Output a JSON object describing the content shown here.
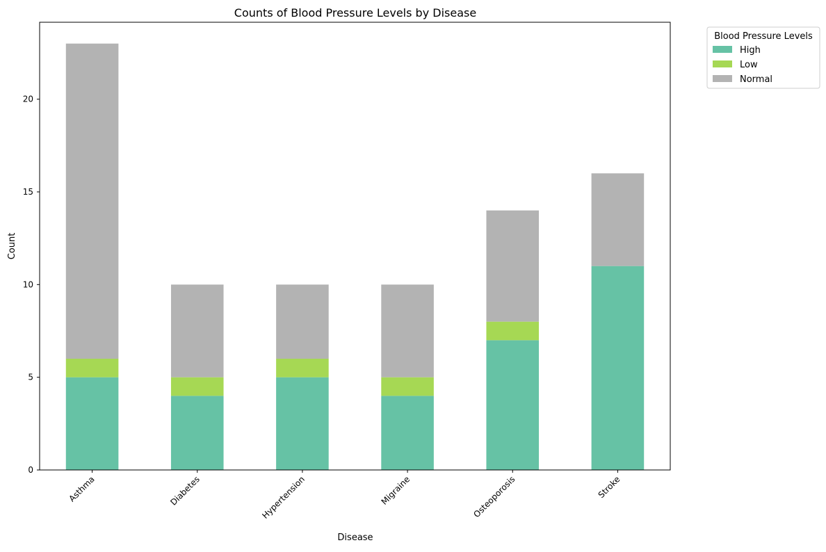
{
  "chart_data": {
    "type": "bar",
    "stacked": true,
    "title": "Counts of Blood Pressure Levels by Disease",
    "xlabel": "Disease",
    "ylabel": "Count",
    "categories": [
      "Asthma",
      "Diabetes",
      "Hypertension",
      "Migraine",
      "Osteoporosis",
      "Stroke"
    ],
    "series": [
      {
        "name": "High",
        "values": [
          5,
          4,
          5,
          4,
          7,
          11
        ],
        "color": "#66c2a5"
      },
      {
        "name": "Low",
        "values": [
          1,
          1,
          1,
          1,
          1,
          0
        ],
        "color": "#a6d854"
      },
      {
        "name": "Normal",
        "values": [
          17,
          5,
          4,
          5,
          6,
          5
        ],
        "color": "#b3b3b3"
      }
    ],
    "ylim": [
      0,
      24.15
    ],
    "yticks": [
      0,
      5,
      10,
      15,
      20
    ],
    "ytick_labels": [
      "0",
      "5",
      "10",
      "15",
      "20"
    ],
    "grid": false,
    "legend": {
      "title": "Blood Pressure Levels",
      "placement": "outside-top-right"
    }
  }
}
